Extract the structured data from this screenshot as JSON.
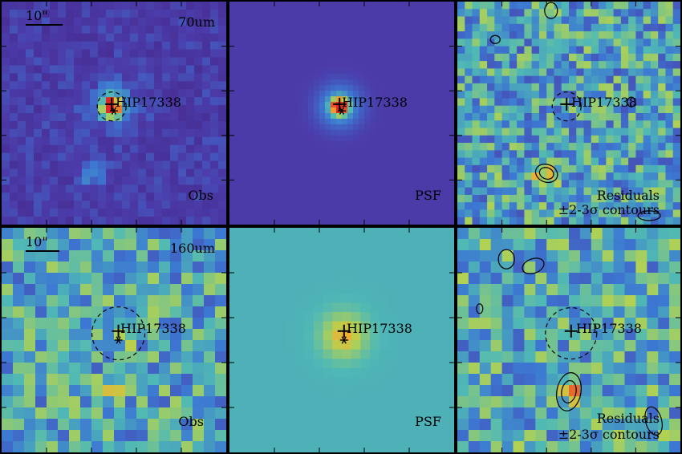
{
  "figure": {
    "star_name": "HIP17338",
    "scale_label": "10\"",
    "rows": [
      {
        "band": "70um",
        "panels": [
          {
            "type": "obs",
            "label": "Obs"
          },
          {
            "type": "psf",
            "label": "PSF"
          },
          {
            "type": "residual",
            "label_line1": "Residuals",
            "label_line2": "±2-3σ contours"
          }
        ]
      },
      {
        "band": "160um",
        "panels": [
          {
            "type": "obs",
            "label": "Obs"
          },
          {
            "type": "psf",
            "label": "PSF"
          },
          {
            "type": "residual",
            "label_line1": "Residuals",
            "label_line2": "±2-3σ contours"
          }
        ]
      }
    ]
  },
  "colors": {
    "deep_purple": "#4b2f8f",
    "blue": "#3f7fd0",
    "teal": "#5fb8b0",
    "yellow_green": "#c8d24a",
    "orange": "#f0a030",
    "red": "#e02828"
  }
}
